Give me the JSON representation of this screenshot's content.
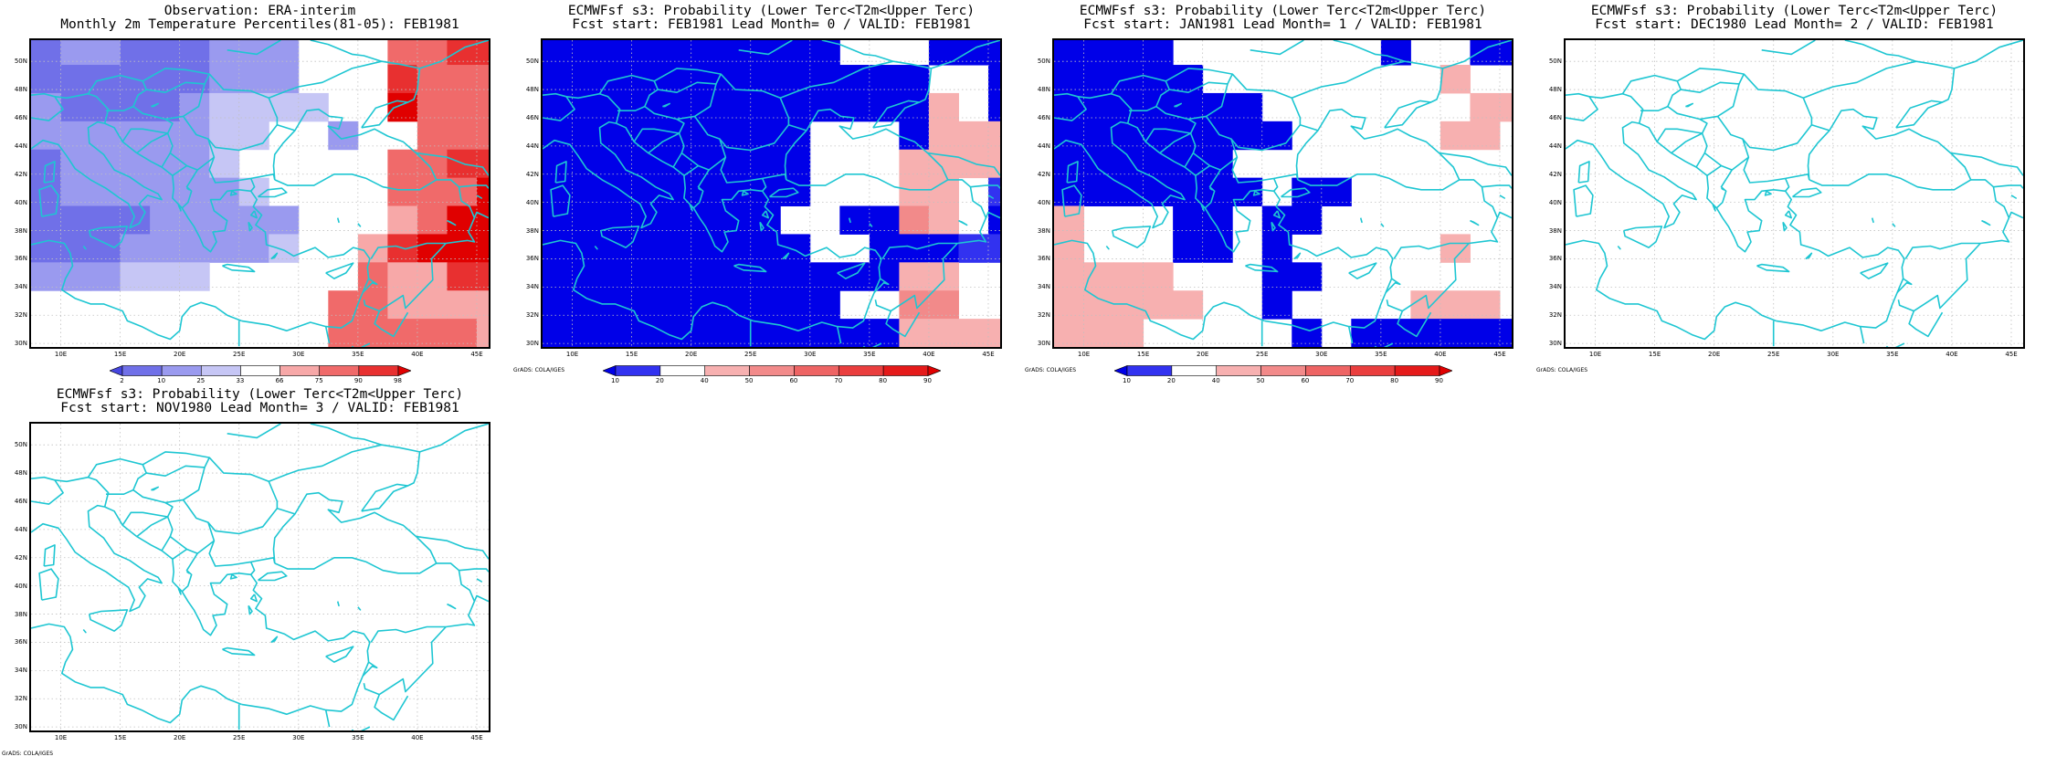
{
  "palettes": {
    "obs": [
      "#4646e0",
      "#7070e8",
      "#9a9aef",
      "#c6c6f5",
      "#ffffff",
      "#f7a8a8",
      "#f06a6a",
      "#e83030",
      "#e00000"
    ],
    "prob": [
      "#0000e8",
      "#3232f0",
      "#ffffff",
      "#f7b0b0",
      "#f28a8a",
      "#ee6464",
      "#ea3e3e",
      "#e51a1a",
      "#e00000"
    ]
  },
  "map_style": {
    "coast_color": "#1ec6d2",
    "grid_color": "#c0c0c0",
    "grid_style": "dotted"
  },
  "axes": {
    "lon_labels": [
      "10E",
      "15E",
      "20E",
      "25E",
      "30E",
      "35E",
      "40E",
      "45E"
    ],
    "lat_labels": [
      "30N",
      "32N",
      "34N",
      "36N",
      "38N",
      "40N",
      "42N",
      "44N",
      "46N",
      "48N",
      "50N"
    ]
  },
  "panels": [
    {
      "title1": "Observation: ERA-interim",
      "title2": "Monthly 2m Temperature Percentiles(81-05): FEB1981",
      "palette": "obs",
      "colorbar_ticks": [
        "2",
        "10",
        "25",
        "33",
        "66",
        "75",
        "90",
        "98"
      ],
      "credit": "",
      "chart_data": {
        "type": "heatmap",
        "units": "percentile class index (0=<2 ... 8=>98)",
        "x_start_lon": 7.5,
        "y_start_lat": 29.75,
        "cell_lon": 2.5,
        "cell_lat": 2.0,
        "grid": [
          "1221112224..66777777",
          "1111112224..76667777",
          "2111123333..86666667",
          "22222233..2..6667777",
          "12222234...466777666",
          "12222223...4666888666",
          "1111222224..5688886665",
          "111222223..5788887555",
          "222333.....65577755555",
          "..........665555555555",
          "..........666665555555"
        ]
      }
    },
    {
      "title1": "ECMWFsf s3: Probability (Lower Terc<T2m<Upper Terc)",
      "title2": "Fcst start: FEB1981   Lead Month= 0 / VALID: FEB1981",
      "palette": "prob",
      "colorbar_ticks": [
        "10",
        "20",
        "40",
        "50",
        "60",
        "70",
        "80",
        "90"
      ],
      "credit": "GrADS: COLA/IGES",
      "chart_data": {
        "type": "heatmap",
        "units": "probability class index",
        "x_start_lon": 7.5,
        "y_start_lat": 29.75,
        "cell_lon": 2.5,
        "cell_lat": 2.0,
        "grid": [
          "000000000022200044444",
          "000000000000022034455",
          "00000000000003203546",
          "00000000022203335555",
          "00000000022233334543",
          "00000000022233212224",
          "00000000220043200222",
          "000000000220001112223",
          "00000000000033222003",
          "000000000022442222233",
          "000000000000333332222"
        ]
      }
    },
    {
      "title1": "ECMWFsf s3: Probability (Lower Terc<T2m<Upper Terc)",
      "title2": "Fcst start: JAN1981   Lead Month= 1 / VALID: FEB1981",
      "palette": "prob",
      "colorbar_ticks": [
        "10",
        "20",
        "40",
        "50",
        "60",
        "70",
        "80",
        "90"
      ],
      "credit": "GrADS: COLA/IGES",
      "chart_data": {
        "type": "heatmap",
        "units": "probability class index",
        "x_start_lon": 7.5,
        "y_start_lat": 29.75,
        "cell_lon": 2.5,
        "cell_lat": 2.0,
        "grid": [
          "00002222222022002222",
          "00000222222223222222",
          "00000002222222333222",
          "00000000222223322222",
          "00000022222222222222",
          "00000002002222222222",
          "3222002002222222222",
          "3222002022222322222",
          "3333222002222222222",
          "333332202222333",
          "33322222020000000022"
        ]
      }
    },
    {
      "title1": "ECMWFsf s3: Probability (Lower Terc<T2m<Upper Terc)",
      "title2": "Fcst start: DEC1980   Lead Month= 2 / VALID: FEB1981",
      "palette": "prob",
      "colorbar_ticks": [],
      "credit": "GrADS: COLA/IGES",
      "chart_data": {
        "type": "heatmap",
        "grid": []
      }
    },
    {
      "title1": "ECMWFsf s3: Probability (Lower Terc<T2m<Upper Terc)",
      "title2": "Fcst start: NOV1980   Lead Month= 3 / VALID: FEB1981",
      "palette": "prob",
      "colorbar_ticks": [],
      "credit": "GrADS: COLA/IGES",
      "chart_data": {
        "type": "heatmap",
        "grid": []
      }
    }
  ]
}
